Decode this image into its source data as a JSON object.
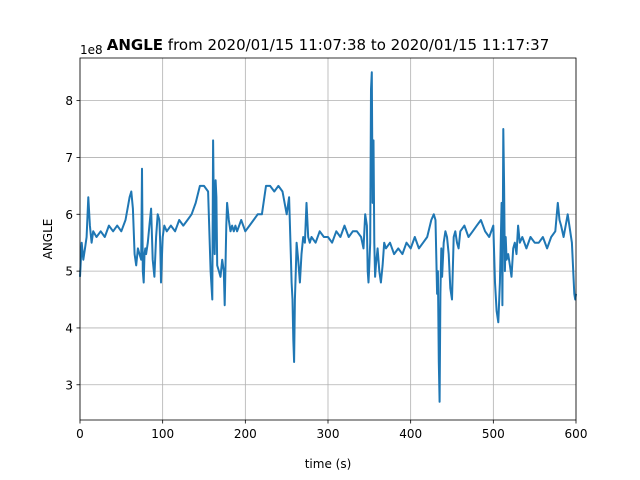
{
  "chart_data": {
    "type": "line",
    "title_bold": "ANGLE",
    "title_rest": " from 2020/01/15 11:07:38 to 2020/01/15 11:17:37",
    "xlabel": "time (s)",
    "ylabel": "ANGLE",
    "offset_label": "1e8",
    "xlim": [
      0,
      600
    ],
    "ylim": [
      2.38,
      8.75
    ],
    "xticks": [
      0,
      100,
      200,
      300,
      400,
      500,
      600
    ],
    "yticks": [
      3,
      4,
      5,
      6,
      7,
      8
    ],
    "grid": true,
    "line_color": "#1f77b4",
    "series": [
      {
        "x": [
          0,
          2,
          4,
          6,
          8,
          10,
          12,
          14,
          16,
          20,
          25,
          30,
          35,
          40,
          45,
          50,
          55,
          60,
          62,
          64,
          66,
          68,
          70,
          72,
          74,
          75,
          76,
          77,
          78,
          79,
          80,
          82,
          84,
          86,
          88,
          90,
          92,
          94,
          96,
          97,
          98,
          99,
          100,
          102,
          105,
          110,
          115,
          120,
          125,
          130,
          135,
          140,
          145,
          150,
          155,
          158,
          160,
          161,
          162,
          163,
          164,
          165,
          166,
          168,
          170,
          172,
          174,
          175,
          176,
          177,
          178,
          180,
          182,
          184,
          186,
          188,
          190,
          195,
          200,
          205,
          210,
          215,
          220,
          225,
          230,
          235,
          240,
          245,
          250,
          253,
          255,
          256,
          257,
          258,
          259,
          260,
          261,
          262,
          264,
          266,
          268,
          270,
          272,
          274,
          276,
          278,
          280,
          285,
          290,
          295,
          300,
          305,
          310,
          315,
          320,
          325,
          330,
          335,
          340,
          343,
          345,
          347,
          348,
          349,
          350,
          351,
          352,
          353,
          354,
          355,
          356,
          357,
          358,
          360,
          362,
          364,
          366,
          368,
          370,
          375,
          380,
          385,
          390,
          395,
          400,
          405,
          410,
          415,
          420,
          425,
          428,
          430,
          432,
          433,
          434,
          435,
          436,
          437,
          438,
          440,
          442,
          444,
          446,
          448,
          450,
          452,
          454,
          456,
          458,
          460,
          465,
          470,
          475,
          480,
          485,
          490,
          495,
          500,
          502,
          504,
          506,
          508,
          510,
          511,
          512,
          513,
          514,
          515,
          516,
          518,
          520,
          522,
          524,
          526,
          528,
          530,
          532,
          535,
          540,
          545,
          550,
          555,
          560,
          565,
          570,
          575,
          578,
          580,
          582,
          585,
          590,
          595,
          598,
          599,
          600
        ],
        "y": [
          4.9,
          5.5,
          5.2,
          5.4,
          5.6,
          6.3,
          5.8,
          5.5,
          5.7,
          5.6,
          5.7,
          5.6,
          5.8,
          5.7,
          5.8,
          5.7,
          5.9,
          6.3,
          6.4,
          6.1,
          5.3,
          5.1,
          5.4,
          5.3,
          5.2,
          6.8,
          5.0,
          4.8,
          5.3,
          5.4,
          5.3,
          5.5,
          5.8,
          6.1,
          5.2,
          4.9,
          5.6,
          6.0,
          5.9,
          5.5,
          4.8,
          5.2,
          5.6,
          5.8,
          5.7,
          5.8,
          5.7,
          5.9,
          5.8,
          5.9,
          6.0,
          6.2,
          6.5,
          6.5,
          6.4,
          5.0,
          4.5,
          7.3,
          6.0,
          5.3,
          6.6,
          6.3,
          5.1,
          5.0,
          4.9,
          5.2,
          5.0,
          4.4,
          5.1,
          5.8,
          6.2,
          5.9,
          5.7,
          5.8,
          5.7,
          5.8,
          5.7,
          5.9,
          5.7,
          5.8,
          5.9,
          6.0,
          6.0,
          6.5,
          6.5,
          6.4,
          6.5,
          6.4,
          6.0,
          6.3,
          5.3,
          4.8,
          4.5,
          3.8,
          3.4,
          4.5,
          5.0,
          5.5,
          5.2,
          4.8,
          5.3,
          5.6,
          5.5,
          6.2,
          5.6,
          5.5,
          5.6,
          5.5,
          5.7,
          5.6,
          5.6,
          5.5,
          5.7,
          5.6,
          5.8,
          5.6,
          5.7,
          5.7,
          5.6,
          5.4,
          6.0,
          5.8,
          5.0,
          4.8,
          5.1,
          5.5,
          8.2,
          8.5,
          6.2,
          7.3,
          5.5,
          4.9,
          5.1,
          5.4,
          5.0,
          4.8,
          5.1,
          5.5,
          5.4,
          5.5,
          5.3,
          5.4,
          5.3,
          5.5,
          5.4,
          5.6,
          5.4,
          5.5,
          5.6,
          5.9,
          6.0,
          5.9,
          4.6,
          5.0,
          3.4,
          2.7,
          4.6,
          5.4,
          4.9,
          5.5,
          5.7,
          5.6,
          5.3,
          4.7,
          4.5,
          5.6,
          5.7,
          5.5,
          5.4,
          5.7,
          5.8,
          5.6,
          5.7,
          5.8,
          5.9,
          5.7,
          5.6,
          5.8,
          4.8,
          4.3,
          4.1,
          4.8,
          6.2,
          4.4,
          7.5,
          6.5,
          5.0,
          5.6,
          5.2,
          5.3,
          5.1,
          4.9,
          5.4,
          5.5,
          5.3,
          5.8,
          5.5,
          5.6,
          5.4,
          5.6,
          5.5,
          5.5,
          5.6,
          5.4,
          5.6,
          5.7,
          6.2,
          5.9,
          5.8,
          5.6,
          6.0,
          5.5,
          4.6,
          4.5,
          4.6
        ]
      }
    ]
  }
}
